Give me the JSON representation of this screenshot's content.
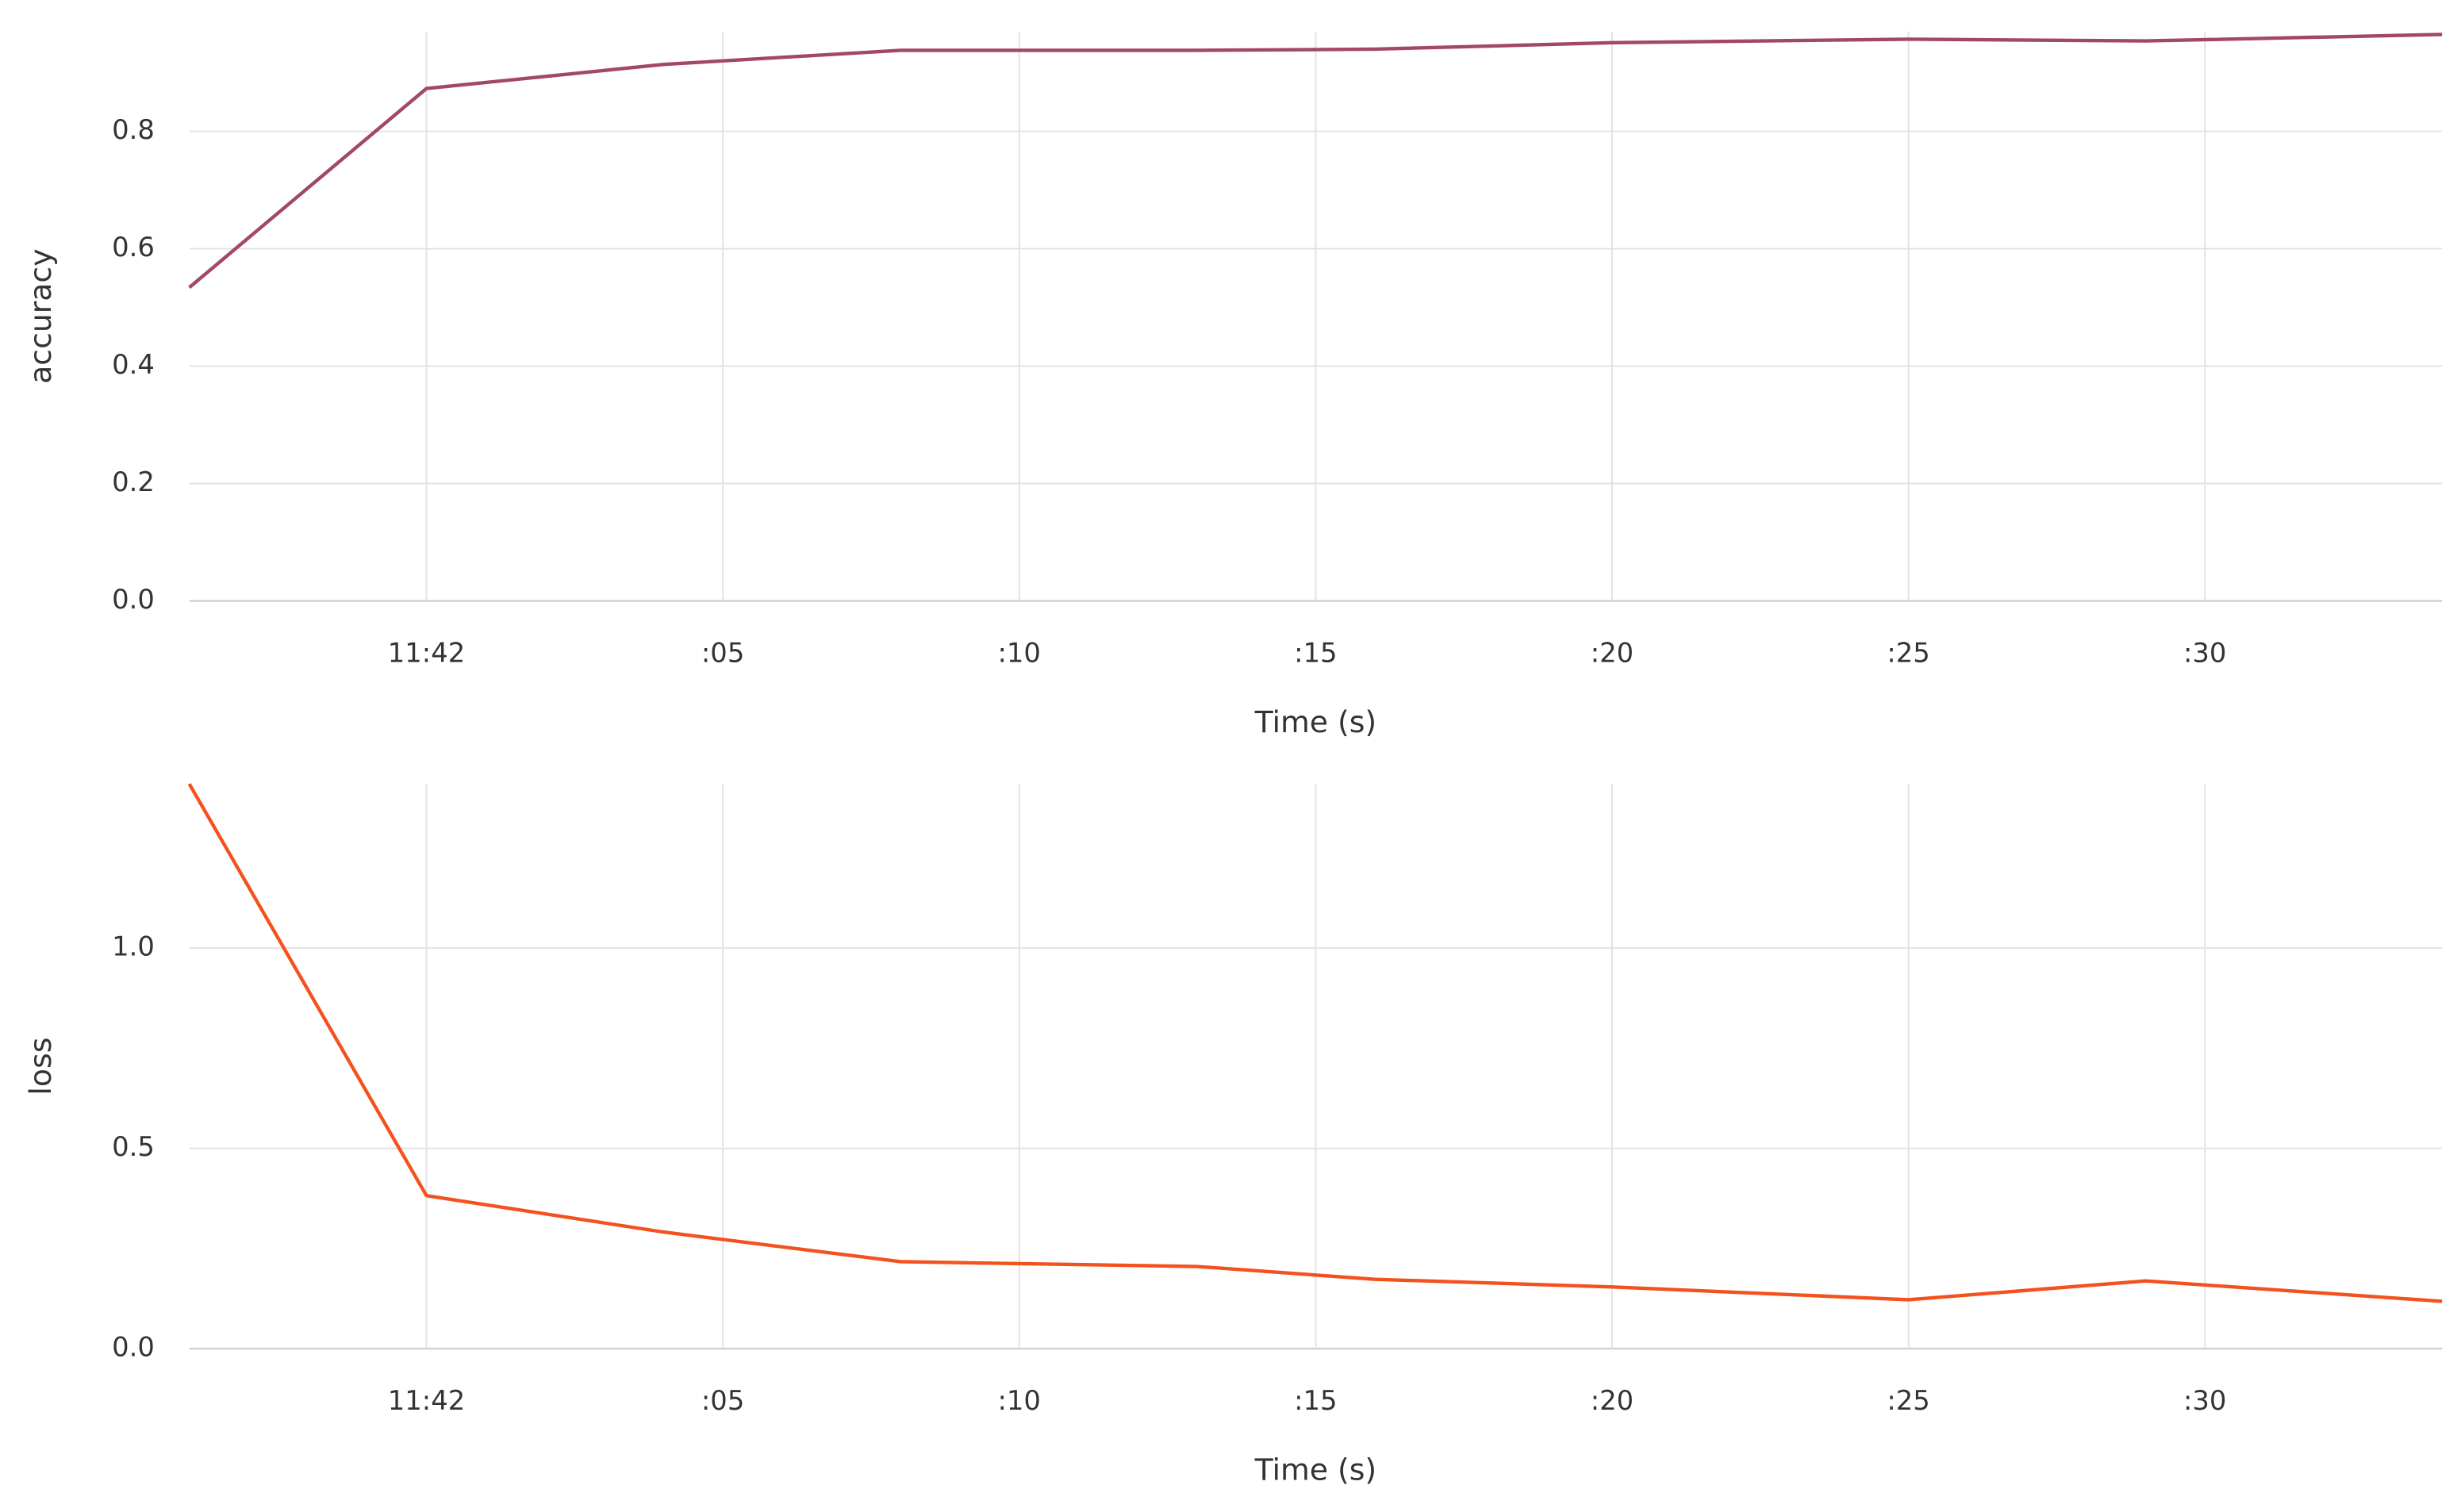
{
  "chart_data": [
    {
      "type": "line",
      "y_label": "accuracy",
      "x_label": "Time (s)",
      "x": [
        -4,
        0,
        4,
        8,
        13,
        16,
        20,
        25,
        29,
        34
      ],
      "values": [
        0.534,
        0.873,
        0.914,
        0.938,
        0.938,
        0.94,
        0.951,
        0.957,
        0.954,
        0.965
      ],
      "color": "#a3466c",
      "xlim": [
        -4,
        34
      ],
      "xticks": [
        {
          "value": 0,
          "label": "11:42"
        },
        {
          "value": 5,
          "label": ":05"
        },
        {
          "value": 10,
          "label": ":10"
        },
        {
          "value": 15,
          "label": ":15"
        },
        {
          "value": 20,
          "label": ":20"
        },
        {
          "value": 25,
          "label": ":25"
        },
        {
          "value": 30,
          "label": ":30"
        }
      ],
      "ylim": [
        0,
        0.97
      ],
      "yticks": [
        {
          "value": 0,
          "label": "0.0"
        },
        0.2,
        0.4,
        0.6,
        0.8
      ],
      "grid": true
    },
    {
      "type": "line",
      "y_label": "loss",
      "x_label": "Time (s)",
      "x": [
        -4,
        0,
        4,
        8,
        13,
        16,
        20,
        25,
        29,
        34
      ],
      "values": [
        1.41,
        0.382,
        0.291,
        0.217,
        0.205,
        0.173,
        0.154,
        0.122,
        0.169,
        0.118
      ],
      "color": "#f4511e",
      "xlim": [
        -4,
        34
      ],
      "xticks": [
        {
          "value": 0,
          "label": "11:42"
        },
        {
          "value": 5,
          "label": ":05"
        },
        {
          "value": 10,
          "label": ":10"
        },
        {
          "value": 15,
          "label": ":15"
        },
        {
          "value": 20,
          "label": ":20"
        },
        {
          "value": 25,
          "label": ":25"
        },
        {
          "value": 30,
          "label": ":30"
        }
      ],
      "ylim": [
        0,
        1.41
      ],
      "yticks": [
        {
          "value": 0,
          "label": "0.0"
        },
        0.5,
        {
          "value": 1,
          "label": "1.0"
        }
      ],
      "grid": true
    }
  ]
}
